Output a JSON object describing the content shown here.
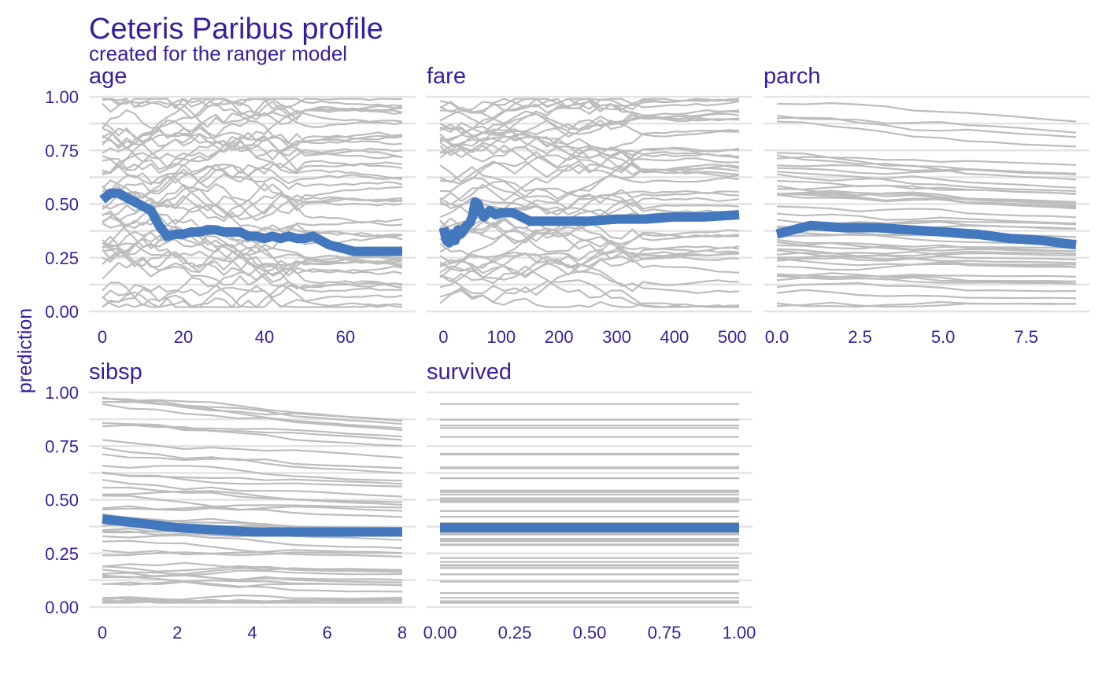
{
  "title": "Ceteris Paribus profile",
  "subtitle": "created for the ranger model",
  "colors": {
    "text": "#371ea3",
    "profile": "#4378bf",
    "ice": "#bdbdbd",
    "grid": "#e4e4e4"
  },
  "chart_data": {
    "type": "line",
    "ylabel": "prediction",
    "ylim": [
      0,
      1
    ],
    "yticks": [
      "0.00",
      "0.25",
      "0.50",
      "0.75",
      "1.00"
    ],
    "panels": [
      {
        "name": "age",
        "xlim": [
          0,
          74
        ],
        "xticks": [
          {
            "v": 0,
            "t": "0"
          },
          {
            "v": 20,
            "t": "20"
          },
          {
            "v": 40,
            "t": "40"
          },
          {
            "v": 60,
            "t": "60"
          }
        ],
        "profile": {
          "x": [
            0,
            2,
            4,
            6,
            8,
            10,
            12,
            14,
            16,
            18,
            20,
            22,
            24,
            26,
            28,
            30,
            32,
            34,
            36,
            38,
            40,
            42,
            44,
            46,
            48,
            50,
            52,
            54,
            56,
            58,
            60,
            62,
            64,
            66,
            68,
            70,
            72,
            74
          ],
          "y": [
            0.52,
            0.55,
            0.55,
            0.53,
            0.51,
            0.49,
            0.47,
            0.4,
            0.35,
            0.36,
            0.36,
            0.37,
            0.37,
            0.38,
            0.38,
            0.37,
            0.37,
            0.37,
            0.35,
            0.35,
            0.34,
            0.35,
            0.34,
            0.35,
            0.34,
            0.34,
            0.35,
            0.33,
            0.31,
            0.3,
            0.29,
            0.28,
            0.28,
            0.28,
            0.28,
            0.28,
            0.28,
            0.28
          ]
        }
      },
      {
        "name": "fare",
        "xlim": [
          -6,
          512
        ],
        "xticks": [
          {
            "v": 0,
            "t": "0"
          },
          {
            "v": 100,
            "t": "100"
          },
          {
            "v": 200,
            "t": "200"
          },
          {
            "v": 300,
            "t": "300"
          },
          {
            "v": 400,
            "t": "400"
          },
          {
            "v": 500,
            "t": "500"
          }
        ],
        "profile": {
          "x": [
            0,
            5,
            10,
            15,
            20,
            25,
            30,
            35,
            40,
            45,
            50,
            55,
            60,
            65,
            70,
            80,
            90,
            100,
            110,
            120,
            135,
            150,
            200,
            250,
            300,
            350,
            400,
            450,
            512
          ],
          "y": [
            0.39,
            0.33,
            0.32,
            0.36,
            0.33,
            0.38,
            0.36,
            0.38,
            0.4,
            0.41,
            0.44,
            0.51,
            0.5,
            0.46,
            0.44,
            0.47,
            0.45,
            0.46,
            0.46,
            0.46,
            0.44,
            0.42,
            0.42,
            0.42,
            0.43,
            0.43,
            0.44,
            0.44,
            0.45
          ]
        }
      },
      {
        "name": "parch",
        "xlim": [
          0,
          9
        ],
        "xticks": [
          {
            "v": 0,
            "t": "0.0"
          },
          {
            "v": 2.5,
            "t": "2.5"
          },
          {
            "v": 5,
            "t": "5.0"
          },
          {
            "v": 7.5,
            "t": "7.5"
          }
        ],
        "profile": {
          "x": [
            0,
            1,
            2,
            3,
            4,
            5,
            6,
            7,
            8,
            9
          ],
          "y": [
            0.36,
            0.4,
            0.39,
            0.39,
            0.38,
            0.37,
            0.36,
            0.34,
            0.33,
            0.31
          ]
        }
      },
      {
        "name": "sibsp",
        "xlim": [
          0,
          8
        ],
        "xticks": [
          {
            "v": 0,
            "t": "0"
          },
          {
            "v": 2,
            "t": "2"
          },
          {
            "v": 4,
            "t": "4"
          },
          {
            "v": 6,
            "t": "6"
          },
          {
            "v": 8,
            "t": "8"
          }
        ],
        "profile": {
          "x": [
            0,
            1,
            2,
            3,
            4,
            5,
            6,
            7,
            8
          ],
          "y": [
            0.41,
            0.39,
            0.37,
            0.36,
            0.35,
            0.35,
            0.35,
            0.35,
            0.35
          ]
        }
      },
      {
        "name": "survived",
        "xlim": [
          0,
          1
        ],
        "xticks": [
          {
            "v": 0,
            "t": "0.00"
          },
          {
            "v": 0.25,
            "t": "0.25"
          },
          {
            "v": 0.5,
            "t": "0.50"
          },
          {
            "v": 0.75,
            "t": "0.75"
          },
          {
            "v": 1,
            "t": "1.00"
          }
        ],
        "profile": {
          "x": [
            0,
            1
          ],
          "y": [
            0.37,
            0.37
          ]
        }
      }
    ]
  }
}
